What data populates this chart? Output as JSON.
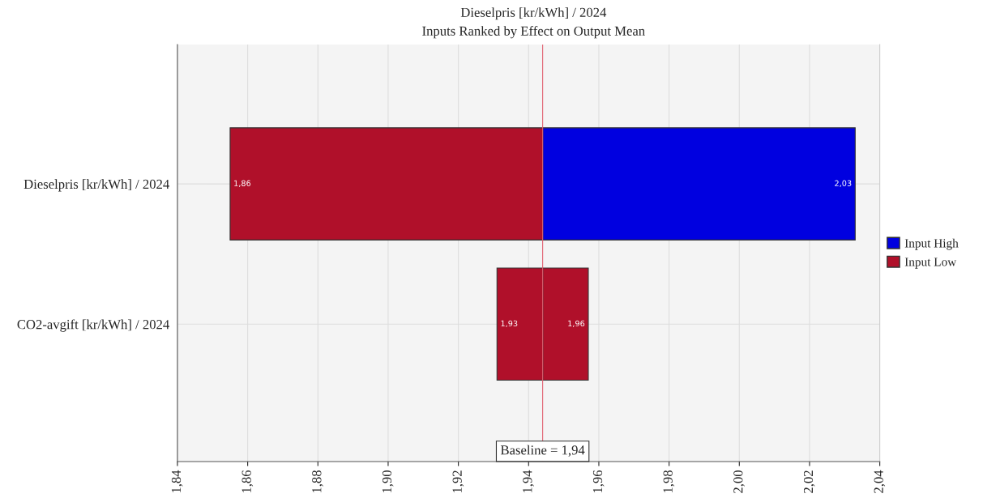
{
  "chart_data": {
    "type": "bar",
    "orientation": "horizontal",
    "title": "Dieselpris [kr/kWh] / 2024",
    "subtitle": "Inputs Ranked by Effect on Output Mean",
    "categories": [
      "Dieselpris [kr/kWh] / 2024",
      "CO2-avgift [kr/kWh] / 2024"
    ],
    "series": [
      {
        "name": "Input High",
        "color": "#0000e0",
        "colors": [
          "#0000e0",
          "#b0102a"
        ],
        "base": [
          1.944,
          1.944
        ],
        "values": [
          0.089,
          0.013
        ],
        "value_labels": [
          "2,03",
          "1,96"
        ]
      },
      {
        "name": "Input Low",
        "color": "#b0102a",
        "base": [
          1.944,
          1.944
        ],
        "values": [
          -0.089,
          -0.013
        ],
        "value_labels": [
          "1,86",
          "1,93"
        ]
      }
    ],
    "xlim": [
      1.84,
      2.04
    ],
    "xticks": [
      {
        "value": 1.84,
        "label": "1,84"
      },
      {
        "value": 1.86,
        "label": "1,86"
      },
      {
        "value": 1.88,
        "label": "1,88"
      },
      {
        "value": 1.9,
        "label": "1,90"
      },
      {
        "value": 1.92,
        "label": "1,92"
      },
      {
        "value": 1.94,
        "label": "1,94"
      },
      {
        "value": 1.96,
        "label": "1,96"
      },
      {
        "value": 1.98,
        "label": "1,98"
      },
      {
        "value": 2.0,
        "label": "2,00"
      },
      {
        "value": 2.02,
        "label": "2,02"
      },
      {
        "value": 2.04,
        "label": "2,04"
      }
    ],
    "ref_lines": [
      {
        "axis": "x",
        "value": 1.944,
        "label": "Baseline = 1,94",
        "color": "#e06070"
      }
    ],
    "grid": true,
    "legend": "right"
  }
}
